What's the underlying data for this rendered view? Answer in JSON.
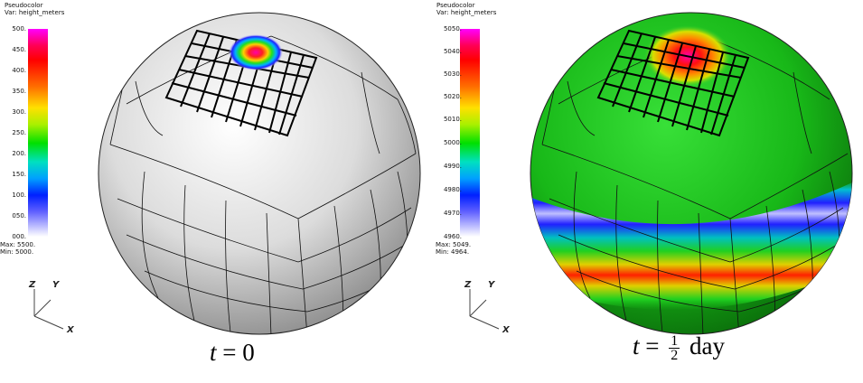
{
  "panels": [
    {
      "legend": {
        "title": "Pseudocolor",
        "var": "Var: height_meters",
        "ticks": [
          "500.",
          "450.",
          "400.",
          "350.",
          "300.",
          "250.",
          "200.",
          "150.",
          "100.",
          "050.",
          "000."
        ],
        "max": "Max: 5500.",
        "min": "Min: 5000."
      },
      "axes": {
        "z": "Z",
        "y": "Y",
        "x": "X"
      },
      "caption": {
        "var": "t",
        "eq": "=",
        "value": "0"
      }
    },
    {
      "legend": {
        "title": "Pseudocolor",
        "var": "Var: height_meters",
        "ticks": [
          "5050.",
          "5040.",
          "5030.",
          "5020.",
          "5010.",
          "5000.",
          "4990.",
          "4980.",
          "4970.",
          "4960."
        ],
        "max": "Max: 5049.",
        "min": "Min: 4964."
      },
      "axes": {
        "z": "Z",
        "y": "Y",
        "x": "X"
      },
      "caption": {
        "var": "t",
        "eq": "=",
        "num": "1",
        "den": "2",
        "unit": "day"
      }
    }
  ],
  "colors": {
    "left_sphere": "#e6e6e6",
    "right_sphere": "#1ec81e",
    "grid": "#111111"
  }
}
